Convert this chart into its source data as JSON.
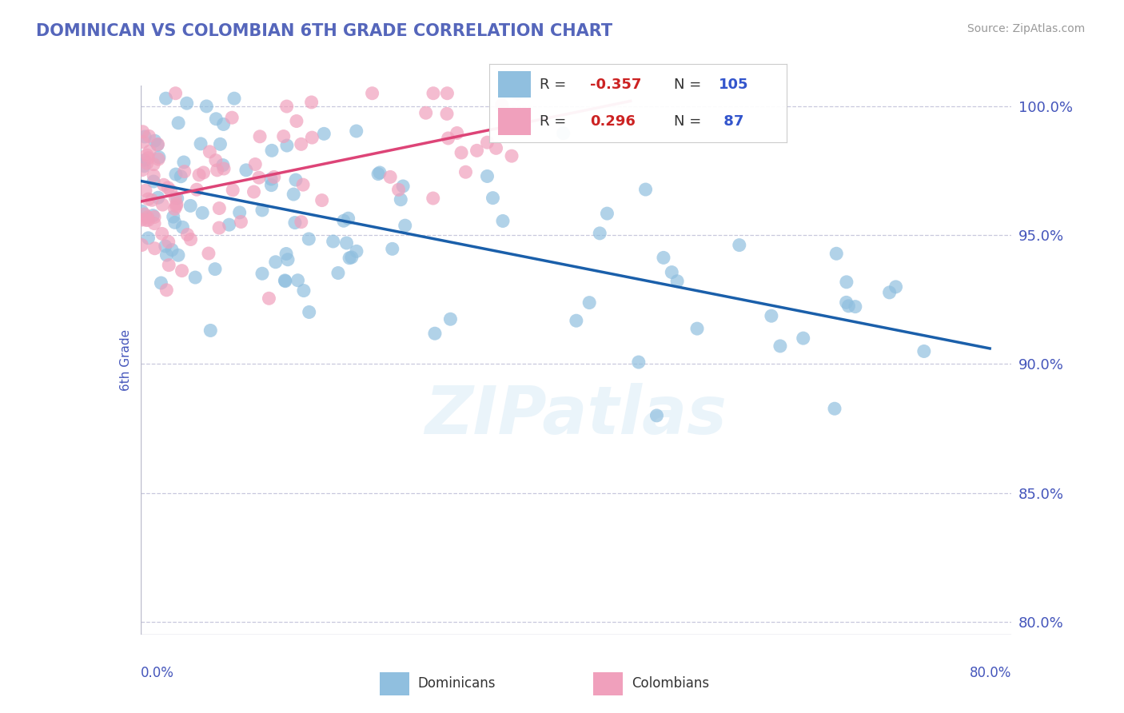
{
  "title": "DOMINICAN VS COLOMBIAN 6TH GRADE CORRELATION CHART",
  "source": "Source: ZipAtlas.com",
  "ylabel": "6th Grade",
  "xmin": 0.0,
  "xmax": 0.8,
  "ymin": 0.795,
  "ymax": 1.008,
  "blue_R": -0.357,
  "blue_N": 105,
  "pink_R": 0.296,
  "pink_N": 87,
  "blue_color": "#90bfdf",
  "pink_color": "#f0a0bc",
  "blue_line_color": "#1a5faa",
  "pink_line_color": "#dd4477",
  "title_color": "#5566bb",
  "source_color": "#999999",
  "axis_label_color": "#4455bb",
  "legend_R_color": "#cc2222",
  "legend_N_color": "#3355cc",
  "ytick_vals": [
    0.8,
    0.85,
    0.9,
    0.95,
    1.0
  ],
  "ytick_labels": [
    "80.0%",
    "85.0%",
    "90.0%",
    "95.0%",
    "100.0%"
  ],
  "blue_line_x0": 0.0,
  "blue_line_y0": 0.971,
  "blue_line_x1": 0.78,
  "blue_line_y1": 0.906,
  "pink_line_x0": 0.0,
  "pink_line_y0": 0.963,
  "pink_line_x1": 0.45,
  "pink_line_y1": 1.002
}
